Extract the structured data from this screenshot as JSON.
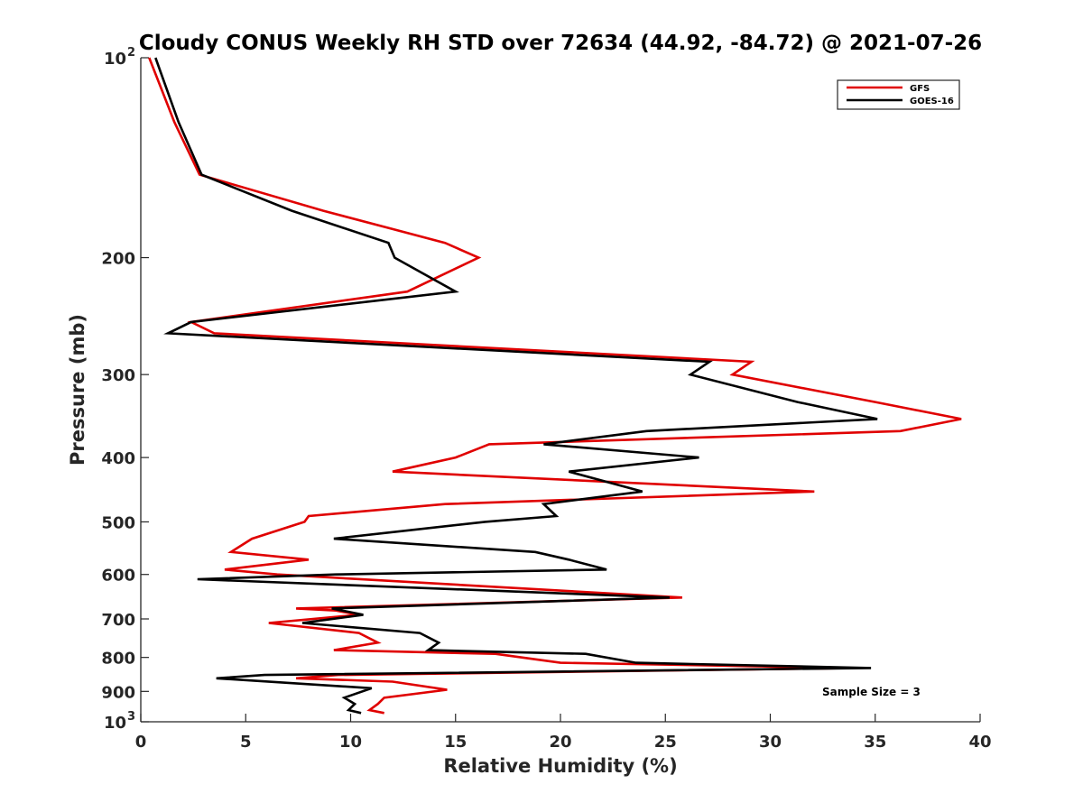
{
  "chart_data": {
    "type": "line",
    "title": "Cloudy CONUS Weekly RH STD over 72634 (44.92, -84.72) @ 2021-07-26",
    "xlabel": "Relative Humidity (%)",
    "ylabel": "Pressure (mb)",
    "xlim": [
      0,
      40
    ],
    "ylim": [
      100,
      1000
    ],
    "y_scale": "log",
    "y_reversed": true,
    "x_ticks": [
      0,
      5,
      10,
      15,
      20,
      25,
      30,
      35,
      40
    ],
    "x_tick_labels": [
      "0",
      "5",
      "10",
      "15",
      "20",
      "25",
      "30",
      "35",
      "40"
    ],
    "y_ticks": [
      100,
      200,
      300,
      400,
      500,
      600,
      700,
      800,
      900,
      1000
    ],
    "y_tick_labels": [
      "10^2",
      "200",
      "300",
      "400",
      "500",
      "600",
      "700",
      "800",
      "900",
      "10^3"
    ],
    "legend_location": "top-right",
    "annotation": "Sample Size = 3",
    "series": [
      {
        "name": "GFS",
        "color": "#e00000",
        "points": [
          [
            0.4,
            100
          ],
          [
            1.6,
            125
          ],
          [
            2.8,
            150
          ],
          [
            8.7,
            170
          ],
          [
            14.5,
            190
          ],
          [
            16.1,
            200
          ],
          [
            12.7,
            225
          ],
          [
            2.4,
            250
          ],
          [
            3.5,
            260
          ],
          [
            29.1,
            287
          ],
          [
            28.2,
            300
          ],
          [
            35.0,
            330
          ],
          [
            39.1,
            350
          ],
          [
            36.2,
            365
          ],
          [
            16.6,
            382
          ],
          [
            15.0,
            400
          ],
          [
            12.0,
            420
          ],
          [
            32.1,
            450
          ],
          [
            14.5,
            470
          ],
          [
            8.0,
            490
          ],
          [
            7.8,
            500
          ],
          [
            5.3,
            530
          ],
          [
            4.3,
            555
          ],
          [
            8.0,
            570
          ],
          [
            4.0,
            590
          ],
          [
            6.5,
            600
          ],
          [
            25.8,
            650
          ],
          [
            7.4,
            675
          ],
          [
            9.3,
            680
          ],
          [
            10.4,
            690
          ],
          [
            6.1,
            710
          ],
          [
            10.4,
            735
          ],
          [
            11.3,
            760
          ],
          [
            9.2,
            780
          ],
          [
            16.9,
            790
          ],
          [
            20.0,
            815
          ],
          [
            34.0,
            830
          ],
          [
            9.4,
            850
          ],
          [
            7.4,
            860
          ],
          [
            12.0,
            870
          ],
          [
            14.6,
            895
          ],
          [
            11.6,
            920
          ],
          [
            11.3,
            940
          ],
          [
            10.9,
            960
          ],
          [
            11.6,
            970
          ]
        ]
      },
      {
        "name": "GOES-16",
        "color": "#000000",
        "points": [
          [
            0.7,
            100
          ],
          [
            1.8,
            125
          ],
          [
            2.9,
            150
          ],
          [
            7.2,
            170
          ],
          [
            11.8,
            190
          ],
          [
            12.1,
            200
          ],
          [
            15.0,
            225
          ],
          [
            2.4,
            250
          ],
          [
            1.3,
            260
          ],
          [
            27.1,
            287
          ],
          [
            26.2,
            300
          ],
          [
            31.3,
            330
          ],
          [
            35.1,
            350
          ],
          [
            24.1,
            365
          ],
          [
            19.2,
            382
          ],
          [
            26.6,
            400
          ],
          [
            20.4,
            420
          ],
          [
            23.9,
            450
          ],
          [
            19.2,
            470
          ],
          [
            19.8,
            490
          ],
          [
            16.4,
            500
          ],
          [
            9.2,
            530
          ],
          [
            18.8,
            555
          ],
          [
            20.4,
            570
          ],
          [
            22.2,
            590
          ],
          [
            9.3,
            600
          ],
          [
            2.7,
            610
          ],
          [
            25.2,
            650
          ],
          [
            9.1,
            675
          ],
          [
            10.6,
            690
          ],
          [
            7.7,
            710
          ],
          [
            13.3,
            735
          ],
          [
            14.2,
            760
          ],
          [
            13.7,
            780
          ],
          [
            21.2,
            790
          ],
          [
            23.6,
            815
          ],
          [
            34.8,
            830
          ],
          [
            5.9,
            850
          ],
          [
            3.6,
            860
          ],
          [
            11.0,
            890
          ],
          [
            9.7,
            920
          ],
          [
            10.2,
            940
          ],
          [
            9.9,
            960
          ],
          [
            10.5,
            970
          ]
        ]
      }
    ]
  }
}
